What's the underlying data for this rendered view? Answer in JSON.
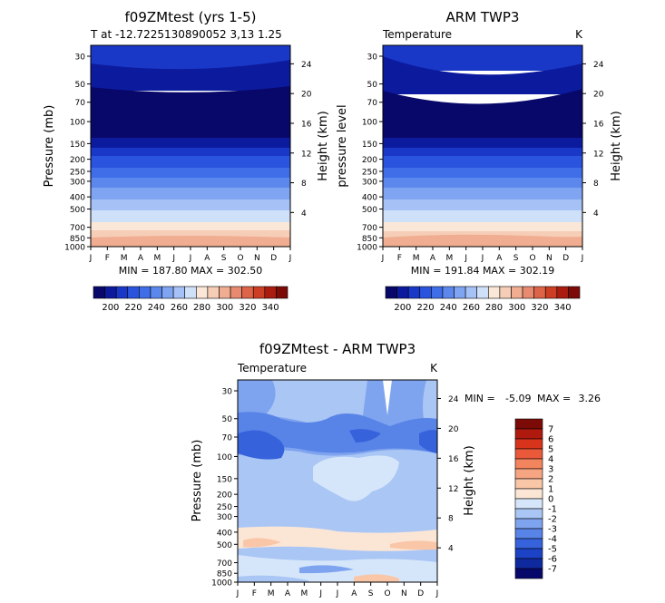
{
  "panels": [
    {
      "title": "f09ZMtest (yrs 1-5)",
      "left_string": "T at -12.7225130890052 3,13 1.25",
      "right_string": "",
      "min_max": "MIN = 187.80 MAX = 302.50",
      "left_axis_label": "Pressure (mb)",
      "right_axis_label": "Height (km)"
    },
    {
      "title": "ARM TWP3",
      "left_string": "Temperature",
      "right_string": "K",
      "min_max": "MIN = 191.84 MAX = 302.19",
      "left_axis_label": "pressure level",
      "right_axis_label": "Height (km)"
    },
    {
      "title": "f09ZMtest - ARM TWP3",
      "left_string": "Temperature",
      "right_string": "K",
      "min_max_label": "MIN =",
      "min_value": "-5.09",
      "max_label": "MAX =",
      "max_value": "3.26",
      "left_axis_label": "Pressure (mb)",
      "right_axis_label": "Height (km)"
    }
  ],
  "chart_data": [
    {
      "type": "heatmap",
      "title": "f09ZMtest (yrs 1-5)",
      "x": [
        "J",
        "F",
        "M",
        "A",
        "M",
        "J",
        "J",
        "A",
        "S",
        "O",
        "N",
        "D",
        "J"
      ],
      "y_ticks": [
        30,
        50,
        70,
        100,
        150,
        200,
        250,
        300,
        400,
        500,
        700,
        850,
        1000
      ],
      "y_label": "Pressure (mb)",
      "y2_ticks": [
        24,
        20,
        16,
        12,
        8,
        4
      ],
      "y2_label": "Height (km)",
      "min": 187.8,
      "max": 302.5,
      "contour_levels": [
        200,
        210,
        220,
        230,
        240,
        250,
        260,
        270,
        280,
        290,
        300,
        310,
        320,
        330,
        340
      ]
    },
    {
      "type": "heatmap",
      "title": "ARM TWP3",
      "x": [
        "J",
        "F",
        "M",
        "A",
        "M",
        "J",
        "J",
        "A",
        "S",
        "O",
        "N",
        "D",
        "J"
      ],
      "y_ticks": [
        30,
        50,
        70,
        100,
        150,
        200,
        250,
        300,
        400,
        500,
        700,
        850,
        1000
      ],
      "y_label": "pressure level",
      "y2_ticks": [
        24,
        20,
        16,
        12,
        8,
        4
      ],
      "y2_label": "Height (km)",
      "min": 191.84,
      "max": 302.19,
      "contour_levels": [
        200,
        210,
        220,
        230,
        240,
        250,
        260,
        270,
        280,
        290,
        300,
        310,
        320,
        330,
        340
      ]
    },
    {
      "type": "heatmap",
      "title": "f09ZMtest - ARM TWP3",
      "x": [
        "J",
        "F",
        "M",
        "A",
        "M",
        "J",
        "J",
        "A",
        "S",
        "O",
        "N",
        "D",
        "J"
      ],
      "y_ticks": [
        30,
        50,
        70,
        100,
        150,
        200,
        250,
        300,
        400,
        500,
        700,
        850,
        1000
      ],
      "y_label": "Pressure (mb)",
      "y2_ticks": [
        24,
        20,
        16,
        12,
        8,
        4
      ],
      "y2_label": "Height (km)",
      "min": -5.09,
      "max": 3.26,
      "contour_levels": [
        -7,
        -6,
        -5,
        -4,
        -3,
        -2,
        -1,
        0,
        1,
        2,
        3,
        4,
        5,
        6,
        7
      ]
    }
  ],
  "colorbar_top": {
    "labels": [
      "200",
      "220",
      "240",
      "260",
      "280",
      "300",
      "320",
      "340"
    ],
    "colors": [
      "#08086b",
      "#0c1b9e",
      "#1a38c8",
      "#2a54de",
      "#3f6ee8",
      "#5c88ee",
      "#7ea4f2",
      "#a5c1f6",
      "#cfe0f9",
      "#fbe7d8",
      "#f6cdb6",
      "#f0ad92",
      "#e88a70",
      "#dd6448",
      "#cc3f25",
      "#aa1c10",
      "#7c0b08"
    ]
  },
  "colorbar_diff": {
    "labels": [
      "7",
      "6",
      "5",
      "4",
      "3",
      "2",
      "1",
      "0",
      "-1",
      "-2",
      "-3",
      "-4",
      "-5",
      "-6",
      "-7"
    ],
    "colors": [
      "#7c0b08",
      "#b01a0e",
      "#d8341c",
      "#ea5a3a",
      "#f2845e",
      "#f6a582",
      "#f9c6a8",
      "#fbe6d6",
      "#d6e6fa",
      "#aac6f5",
      "#7fa4ef",
      "#5884e7",
      "#3663dc",
      "#1c42c6",
      "#0e2a9e",
      "#08086b"
    ]
  }
}
